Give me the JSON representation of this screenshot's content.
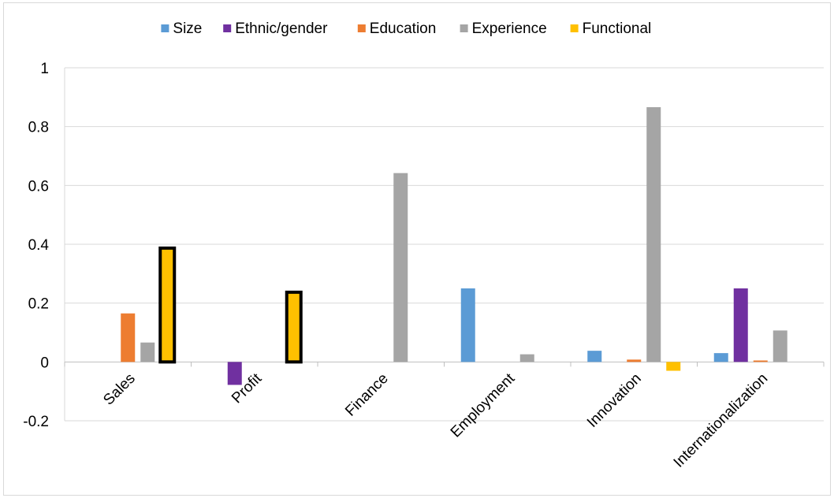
{
  "chart_data": {
    "type": "bar",
    "categories": [
      "Sales",
      "Profit",
      "Finance",
      "Employment",
      "Innovation",
      "Internationalization"
    ],
    "series": [
      {
        "name": "Size",
        "color": "#5b9bd5",
        "values": [
          0,
          0,
          0,
          0.25,
          0.038,
          0.03
        ]
      },
      {
        "name": "Ethnic/gender",
        "color": "#7030a0",
        "values": [
          0,
          -0.078,
          0,
          0,
          0,
          0.25
        ]
      },
      {
        "name": "Education",
        "color": "#ed7d31",
        "values": [
          0.165,
          0,
          0,
          0,
          0.008,
          0.005
        ]
      },
      {
        "name": "Experience",
        "color": "#a5a5a5",
        "values": [
          0.066,
          0,
          0.642,
          0.026,
          0.866,
          0.107
        ]
      },
      {
        "name": "Functional",
        "color": "#ffc000",
        "values": [
          0.387,
          0.237,
          0,
          0,
          -0.03,
          0
        ]
      }
    ],
    "highlighted": [
      {
        "series": "Functional",
        "category": "Sales",
        "border_color": "#000000"
      },
      {
        "series": "Functional",
        "category": "Profit",
        "border_color": "#000000"
      }
    ],
    "yticks": [
      "-0.2",
      "0",
      "0.2",
      "0.4",
      "0.6",
      "0.8",
      "1"
    ],
    "ylim": [
      -0.2,
      1
    ],
    "grid": true,
    "legend_position": "top",
    "title": "",
    "xlabel": "",
    "ylabel": ""
  }
}
